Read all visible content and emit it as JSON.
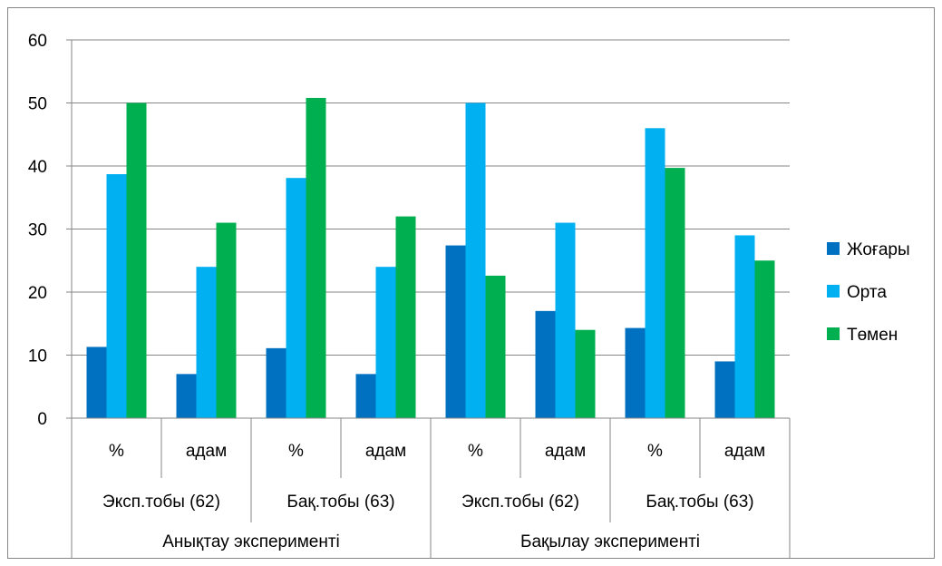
{
  "chart_data": {
    "type": "bar",
    "ylim": [
      0,
      60
    ],
    "yticks": [
      0,
      10,
      20,
      30,
      40,
      50,
      60
    ],
    "grid": true,
    "legend_position": "right",
    "categories": [
      {
        "label": "%",
        "group": "Эксп.тобы (62)",
        "supergroup": "Анықтау эксперименті"
      },
      {
        "label": "адам",
        "group": "Эксп.тобы (62)",
        "supergroup": "Анықтау эксперименті"
      },
      {
        "label": "%",
        "group": "Бақ.тобы (63)",
        "supergroup": "Анықтау эксперименті"
      },
      {
        "label": "адам",
        "group": "Бақ.тобы (63)",
        "supergroup": "Анықтау эксперименті"
      },
      {
        "label": "%",
        "group": "Эксп.тобы (62)",
        "supergroup": "Бақылау эксперименті"
      },
      {
        "label": "адам",
        "group": "Эксп.тобы (62)",
        "supergroup": "Бақылау эксперименті"
      },
      {
        "label": "%",
        "group": "Бақ.тобы (63)",
        "supergroup": "Бақылау эксперименті"
      },
      {
        "label": "адам",
        "group": "Бақ.тобы (63)",
        "supergroup": "Бақылау эксперименті"
      }
    ],
    "groups": [
      "Эксп.тобы (62)",
      "Бақ.тобы (63)",
      "Эксп.тобы (62)",
      "Бақ.тобы (63)"
    ],
    "supergroups": [
      "Анықтау эксперименті",
      "Бақылау эксперименті"
    ],
    "series": [
      {
        "name": "Жоғары",
        "color": "#0070c0",
        "values": [
          11.3,
          7,
          11.1,
          7,
          27.4,
          17,
          14.3,
          9
        ]
      },
      {
        "name": "Орта",
        "color": "#00b0f0",
        "values": [
          38.7,
          24,
          38.1,
          24,
          50,
          31,
          46,
          29
        ]
      },
      {
        "name": "Төмен",
        "color": "#00b050",
        "values": [
          50,
          31,
          50.8,
          32,
          22.6,
          14,
          39.7,
          25
        ]
      }
    ]
  }
}
